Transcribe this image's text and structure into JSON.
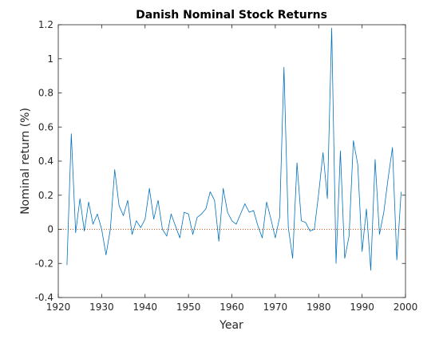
{
  "chart_data": {
    "type": "line",
    "title": "Danish Nominal Stock Returns",
    "xlabel": "Year",
    "ylabel": "Nominal return (%)",
    "xlim": [
      1920,
      2000
    ],
    "ylim": [
      -0.4,
      1.2
    ],
    "xticks": [
      "1920",
      "1930",
      "1940",
      "1950",
      "1960",
      "1970",
      "1980",
      "1990",
      "2000"
    ],
    "yticks": [
      "-0.4",
      "-0.2",
      "0",
      "0.2",
      "0.4",
      "0.6",
      "0.8",
      "1",
      "1.2"
    ],
    "grid": false,
    "legend": "none",
    "line_color": "#0072BD",
    "zero_line_color": "#D95319",
    "series": [
      {
        "x": [
          1922,
          1923,
          1924,
          1925,
          1926,
          1927,
          1928,
          1929,
          1930,
          1931,
          1932,
          1933,
          1934,
          1935,
          1936,
          1937,
          1938,
          1939,
          1940,
          1941,
          1942,
          1943,
          1944,
          1945,
          1946,
          1947,
          1948,
          1949,
          1950,
          1951,
          1952,
          1953,
          1954,
          1955,
          1956,
          1957,
          1958,
          1959,
          1960,
          1961,
          1962,
          1963,
          1964,
          1965,
          1966,
          1967,
          1968,
          1969,
          1970,
          1971,
          1972,
          1973,
          1974,
          1975,
          1976,
          1977,
          1978,
          1979,
          1980,
          1981,
          1982,
          1983,
          1984,
          1985,
          1986,
          1987,
          1988,
          1989,
          1990,
          1991,
          1992,
          1993,
          1994,
          1995,
          1996,
          1997,
          1998,
          1999
        ],
        "y": [
          -0.21,
          0.56,
          -0.02,
          0.18,
          -0.01,
          0.16,
          0.03,
          0.09,
          0.0,
          -0.15,
          0.0,
          0.35,
          0.14,
          0.08,
          0.17,
          -0.03,
          0.05,
          0.01,
          0.06,
          0.24,
          0.06,
          0.17,
          0.0,
          -0.04,
          0.09,
          0.02,
          -0.05,
          0.1,
          0.09,
          -0.03,
          0.07,
          0.09,
          0.12,
          0.22,
          0.17,
          -0.07,
          0.24,
          0.1,
          0.05,
          0.03,
          0.09,
          0.15,
          0.1,
          0.11,
          0.02,
          -0.05,
          0.16,
          0.06,
          -0.05,
          0.07,
          0.95,
          0.01,
          -0.17,
          0.39,
          0.05,
          0.04,
          -0.01,
          0.0,
          0.21,
          0.45,
          0.18,
          1.18,
          -0.2,
          0.46,
          -0.17,
          -0.04,
          0.52,
          0.38,
          -0.13,
          0.12,
          -0.24,
          0.41,
          -0.03,
          0.1,
          0.3,
          0.48,
          -0.18,
          0.22
        ]
      }
    ]
  }
}
